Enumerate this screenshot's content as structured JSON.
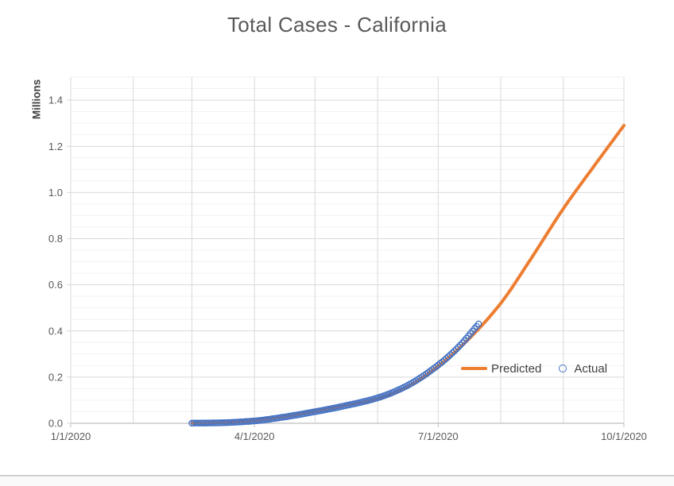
{
  "title": "Total Cases - California",
  "colors": {
    "predicted": "#ED7D31",
    "actual": "#4472C4",
    "title_text": "#595959",
    "tick_text": "#595959",
    "axis_unit_text": "#404040",
    "grid_major": "#D9D9D9",
    "grid_minor": "#F2F2F2",
    "axis_line": "#BFBFBF"
  },
  "chart_data": {
    "type": "line",
    "title": "Total Cases - California",
    "xlabel": "",
    "ylabel": "Millions",
    "ylim": [
      0,
      1.5
    ],
    "y_major_unit": 0.2,
    "y_minor_unit": 0.05,
    "y_major_ticks": [
      "0.0",
      "0.2",
      "0.4",
      "0.6",
      "0.8",
      "1.0",
      "1.2",
      "1.4"
    ],
    "xlim_days": [
      0,
      274
    ],
    "x_tick_labels": [
      "1/1/2020",
      "4/1/2020",
      "7/1/2020",
      "10/1/2020"
    ],
    "x_tick_days": [
      0,
      91,
      182,
      274
    ],
    "x_month_grid_days": [
      0,
      31,
      60,
      91,
      121,
      152,
      182,
      213,
      244,
      274
    ],
    "grid": "on",
    "legend": {
      "position": "inside-bottom-right",
      "items": [
        {
          "label": "Predicted",
          "type": "line",
          "color": "#ED7D31"
        },
        {
          "label": "Actual",
          "type": "open-circle",
          "color": "#4472C4"
        }
      ]
    },
    "series": [
      {
        "name": "Predicted",
        "type": "line",
        "color": "#ED7D31",
        "stroke_width": 4,
        "sample_step_days": 1,
        "points_day_value": [
          [
            60,
            0.001
          ],
          [
            74,
            0.003
          ],
          [
            91,
            0.012
          ],
          [
            105,
            0.027
          ],
          [
            121,
            0.052
          ],
          [
            135,
            0.075
          ],
          [
            152,
            0.108
          ],
          [
            166,
            0.155
          ],
          [
            182,
            0.248
          ],
          [
            196,
            0.355
          ],
          [
            213,
            0.52
          ],
          [
            227,
            0.7
          ],
          [
            244,
            0.93
          ],
          [
            258,
            1.1
          ],
          [
            274,
            1.29
          ]
        ]
      },
      {
        "name": "Actual",
        "type": "scatter",
        "marker": "open-circle",
        "color": "#4472C4",
        "marker_radius": 3.6,
        "marker_stroke_width": 1.3,
        "daily_from_day": 60,
        "daily_to_day": 202,
        "points_day_value": [
          [
            60,
            0.0005
          ],
          [
            74,
            0.002
          ],
          [
            91,
            0.01
          ],
          [
            105,
            0.026
          ],
          [
            121,
            0.05
          ],
          [
            135,
            0.074
          ],
          [
            152,
            0.11
          ],
          [
            166,
            0.16
          ],
          [
            182,
            0.252
          ],
          [
            192,
            0.33
          ],
          [
            202,
            0.43
          ]
        ]
      }
    ]
  }
}
